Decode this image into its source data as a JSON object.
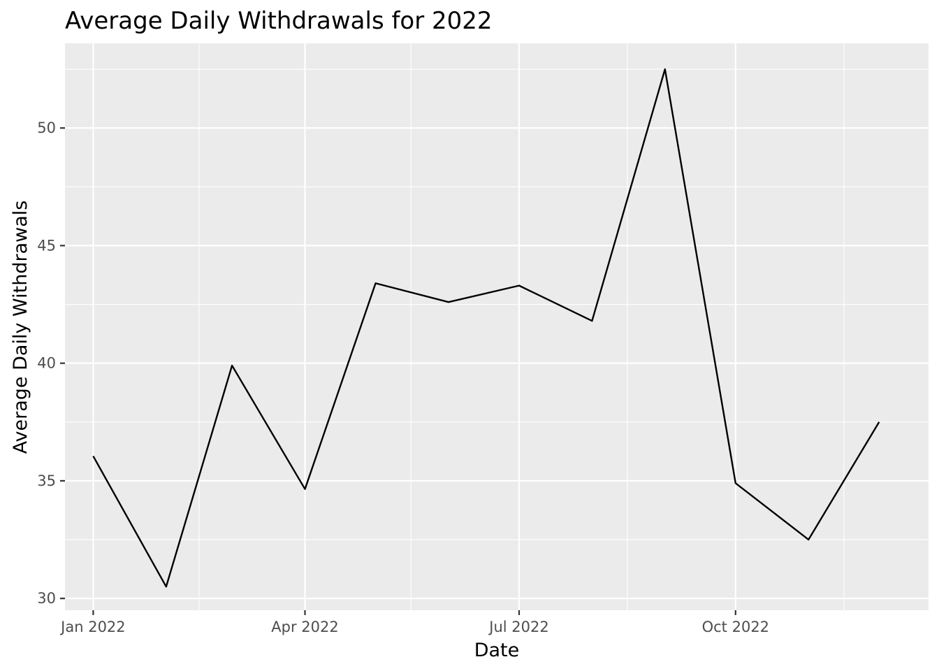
{
  "chart_data": {
    "type": "line",
    "title": "Average Daily Withdrawals for 2022",
    "xlabel": "Date",
    "ylabel": "Average Daily Withdrawals",
    "x_ticks": [
      {
        "date": "2022-01-01",
        "label": "Jan 2022"
      },
      {
        "date": "2022-04-01",
        "label": "Apr 2022"
      },
      {
        "date": "2022-07-01",
        "label": "Jul 2022"
      },
      {
        "date": "2022-10-01",
        "label": "Oct 2022"
      }
    ],
    "x_minor_ticks": [
      "2022-02-15",
      "2022-05-16",
      "2022-08-16",
      "2022-11-16"
    ],
    "y_ticks": [
      30,
      35,
      40,
      45,
      50
    ],
    "y_minor_ticks": [
      32.5,
      37.5,
      42.5,
      47.5,
      52.5
    ],
    "xlim": [
      "2021-12-20",
      "2022-12-22"
    ],
    "ylim": [
      29.5,
      53.6
    ],
    "grid": true,
    "series": [
      {
        "color": "#000000",
        "points": [
          {
            "x": "2022-01-01",
            "y": 36.05
          },
          {
            "x": "2022-02-01",
            "y": 30.5
          },
          {
            "x": "2022-03-01",
            "y": 39.9
          },
          {
            "x": "2022-04-01",
            "y": 34.65
          },
          {
            "x": "2022-05-01",
            "y": 43.4
          },
          {
            "x": "2022-06-01",
            "y": 42.6
          },
          {
            "x": "2022-07-01",
            "y": 43.3
          },
          {
            "x": "2022-08-01",
            "y": 41.8
          },
          {
            "x": "2022-09-01",
            "y": 52.5
          },
          {
            "x": "2022-10-01",
            "y": 34.9
          },
          {
            "x": "2022-11-01",
            "y": 32.5
          },
          {
            "x": "2022-12-01",
            "y": 37.5
          }
        ]
      }
    ],
    "colors": {
      "panel_background": "#ebebeb",
      "grid_line": "#ffffff",
      "tick_mark": "#333333",
      "tick_label": "#4d4d4d",
      "text": "#000000"
    }
  }
}
